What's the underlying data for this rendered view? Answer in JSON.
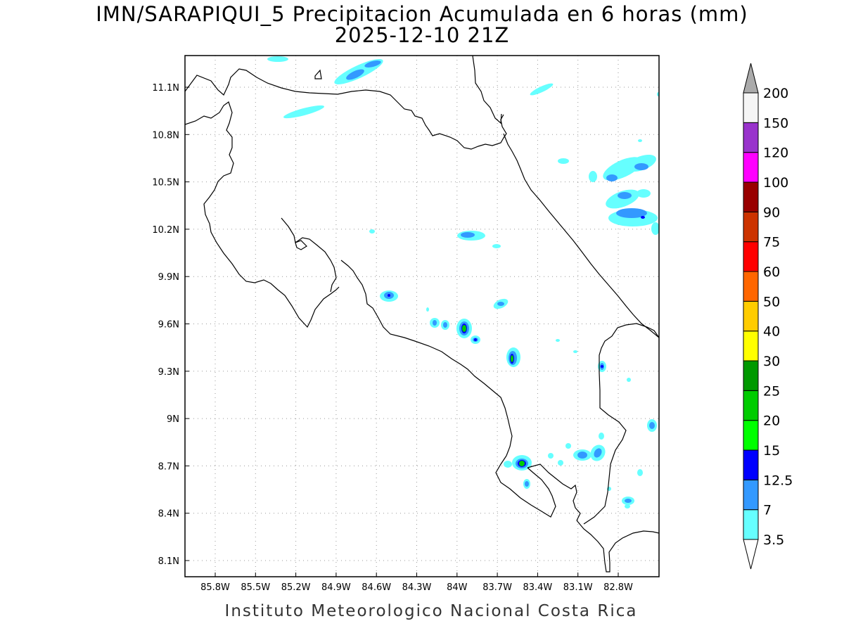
{
  "title": {
    "line1": "IMN/SARAPIQUI_5 Precipitacion Acumulada en 6 horas (mm)",
    "line2": "2025-12-10 21Z"
  },
  "credit": "Instituto Meteorologico Nacional Costa Rica",
  "map": {
    "lon_range": [
      -86.03,
      -82.56
    ],
    "lat_range": [
      7.99,
      11.3
    ],
    "grid": "dotted",
    "x_ticks": [
      "85.8W",
      "85.5W",
      "85.2W",
      "84.9W",
      "84.6W",
      "84.3W",
      "84W",
      "83.7W",
      "83.4W",
      "83.1W",
      "82.8W"
    ],
    "y_ticks": [
      "11.1N",
      "10.8N",
      "10.5N",
      "10.2N",
      "9.9N",
      "9.6N",
      "9.3N",
      "9N",
      "8.7N",
      "8.4N",
      "8.1N"
    ]
  },
  "colorbar": {
    "levels": [
      "3.5",
      "7",
      "12.5",
      "15",
      "20",
      "25",
      "30",
      "40",
      "50",
      "60",
      "75",
      "90",
      "100",
      "120",
      "150",
      "200"
    ],
    "colors": [
      "#66ffff",
      "#3399ff",
      "#0000ff",
      "#00ff00",
      "#00cc00",
      "#009900",
      "#ffff00",
      "#ffcc00",
      "#ff6600",
      "#ff0000",
      "#cc3300",
      "#990000",
      "#ff00ff",
      "#9933cc",
      "#f5f5f5",
      "#aaaaaa"
    ]
  },
  "colors": {
    "coast": "#000000",
    "grid": "#999999",
    "light_cyan": "#66ffff",
    "blue": "#3399ff",
    "dark_blue": "#0000ff",
    "green": "#00ff00",
    "mid_green": "#00cc00"
  }
}
